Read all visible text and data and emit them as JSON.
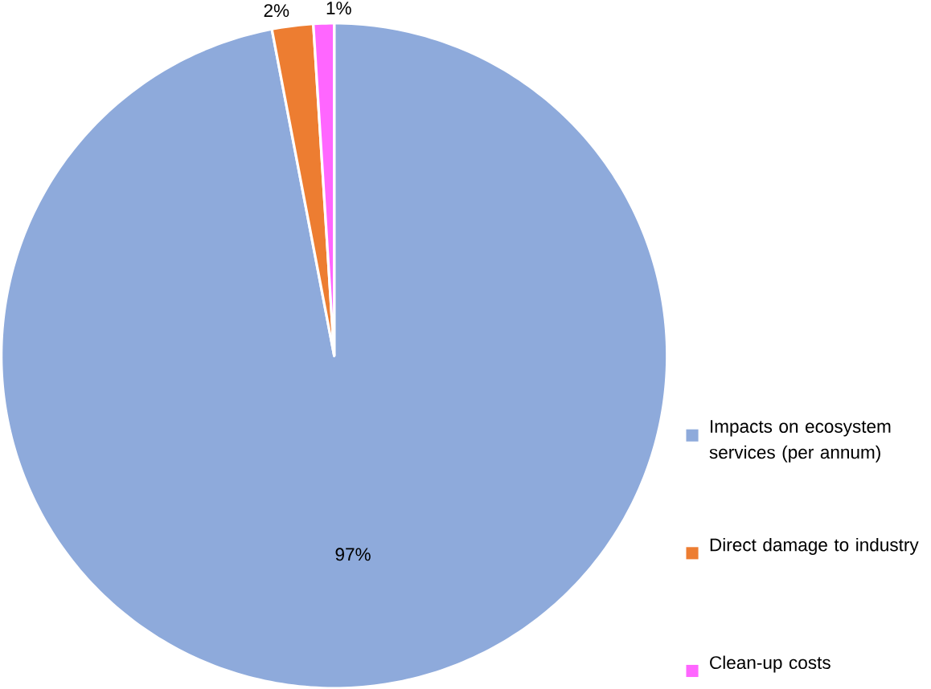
{
  "chart_data": {
    "type": "pie",
    "categories": [
      "Impacts on ecosystem services (per annum)",
      "Direct damage to industry",
      "Clean-up costs"
    ],
    "values": [
      97,
      2,
      1
    ],
    "colors": [
      "#8eaadb",
      "#ed7d31",
      "#ff66ff"
    ],
    "value_labels": [
      "97%",
      "2%",
      "1%"
    ],
    "legend": "right"
  }
}
